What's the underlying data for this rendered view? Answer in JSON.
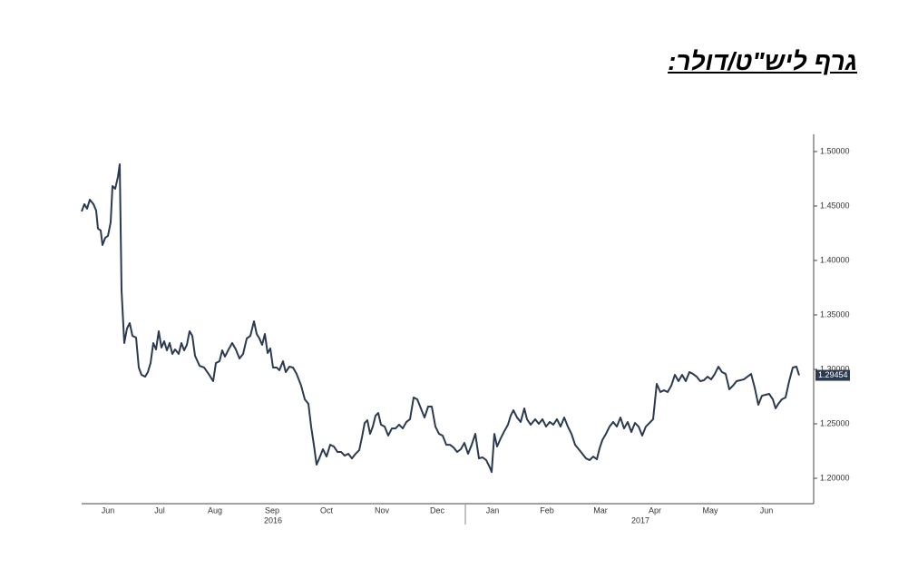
{
  "chart_data": {
    "type": "line",
    "title": "גרף ליש\"ט/דולר:",
    "x": [
      0,
      1.5,
      3,
      4.5,
      6.5,
      8,
      9,
      10.5,
      11.5,
      13,
      14.5,
      16,
      17,
      18.5,
      20,
      21,
      22,
      23.5,
      25,
      26.5,
      28,
      30,
      31.5,
      33,
      35,
      36.5,
      38,
      39.5,
      41,
      42.5,
      44,
      45.5,
      47,
      48.5,
      50,
      51.5,
      53.5,
      55,
      56.5,
      58,
      59.5,
      61,
      62.5,
      65,
      67.5,
      70,
      72.5,
      74,
      76,
      77.5,
      79,
      81,
      83,
      85,
      87,
      89,
      91,
      93,
      95,
      96.5,
      98,
      99.5,
      101,
      102.5,
      104,
      105.5,
      107.5,
      109,
      111,
      112.5,
      114.5,
      116.5,
      118.5,
      121,
      123,
      125,
      126.5,
      128,
      129.5,
      131,
      133,
      135,
      137,
      139,
      141,
      143,
      145,
      147,
      149,
      151,
      153,
      154.5,
      156,
      157.5,
      159,
      160.5,
      162,
      163.5,
      165,
      167,
      169,
      171,
      173,
      175,
      177,
      179,
      181,
      183,
      185,
      187,
      189,
      191,
      193,
      195,
      197,
      199,
      201,
      203,
      205,
      207,
      209,
      211,
      213,
      215,
      217,
      219,
      221,
      223,
      225,
      226,
      227.5,
      229,
      231,
      233,
      235,
      236.5,
      238,
      240,
      242,
      244,
      245.5,
      247.5,
      250,
      252,
      254,
      256,
      258,
      260,
      262,
      264,
      266,
      268,
      270,
      272,
      274,
      276,
      278,
      280,
      282,
      284,
      285.5,
      287,
      289,
      291,
      293,
      295,
      297,
      299,
      301,
      303,
      305,
      307,
      309,
      311,
      313,
      315,
      317,
      319,
      321,
      323,
      325,
      327,
      329,
      331,
      333,
      335,
      337,
      339,
      341,
      343,
      345,
      347,
      349,
      351,
      353,
      355,
      357,
      359,
      361,
      363,
      365,
      367,
      369,
      371,
      373,
      375,
      377,
      379,
      381,
      382.5,
      384,
      386,
      388,
      390,
      392,
      394,
      395.5
    ],
    "series": [
      {
        "color": "#2b3a4f",
        "values": [
          1.445,
          1.4517,
          1.4475,
          1.4558,
          1.4517,
          1.4458,
          1.4292,
          1.4275,
          1.4142,
          1.4208,
          1.4225,
          1.435,
          1.4683,
          1.4658,
          1.4767,
          1.4883,
          1.3725,
          1.3242,
          1.3375,
          1.3425,
          1.3308,
          1.3292,
          1.3017,
          1.295,
          1.2933,
          1.2975,
          1.3058,
          1.3242,
          1.3183,
          1.335,
          1.32,
          1.3258,
          1.3175,
          1.3242,
          1.3142,
          1.3183,
          1.3142,
          1.3242,
          1.3175,
          1.3225,
          1.335,
          1.3308,
          1.3125,
          1.3033,
          1.3017,
          1.2958,
          1.2892,
          1.3058,
          1.3075,
          1.3175,
          1.3117,
          1.3183,
          1.3242,
          1.3183,
          1.31,
          1.3142,
          1.3283,
          1.3308,
          1.3442,
          1.3325,
          1.3283,
          1.3225,
          1.3325,
          1.315,
          1.3192,
          1.3017,
          1.3017,
          1.2992,
          1.3075,
          1.2975,
          1.3025,
          1.3017,
          1.2958,
          1.285,
          1.2725,
          1.2683,
          1.2475,
          1.2308,
          1.2125,
          1.2183,
          1.2267,
          1.22,
          1.2308,
          1.2292,
          1.2242,
          1.2242,
          1.2208,
          1.2225,
          1.2183,
          1.2225,
          1.2258,
          1.2375,
          1.2508,
          1.2533,
          1.2408,
          1.2475,
          1.2575,
          1.26,
          1.2492,
          1.2475,
          1.2392,
          1.2458,
          1.2458,
          1.2492,
          1.2458,
          1.2517,
          1.2542,
          1.2742,
          1.2725,
          1.2642,
          1.2558,
          1.2658,
          1.2658,
          1.2475,
          1.2408,
          1.2392,
          1.2308,
          1.2308,
          1.2283,
          1.2242,
          1.2267,
          1.2325,
          1.2225,
          1.2308,
          1.2408,
          1.2183,
          1.2192,
          1.2167,
          1.21,
          1.2058,
          1.2408,
          1.2292,
          1.2367,
          1.2433,
          1.2492,
          1.2575,
          1.2625,
          1.2558,
          1.2517,
          1.2642,
          1.2542,
          1.2492,
          1.2542,
          1.25,
          1.2542,
          1.2475,
          1.2517,
          1.2492,
          1.2542,
          1.2475,
          1.2558,
          1.2475,
          1.2408,
          1.2308,
          1.2267,
          1.2225,
          1.2183,
          1.2167,
          1.22,
          1.2175,
          1.2275,
          1.235,
          1.2408,
          1.2475,
          1.2517,
          1.2475,
          1.2558,
          1.2458,
          1.2517,
          1.2425,
          1.2508,
          1.2475,
          1.2392,
          1.2475,
          1.2508,
          1.2542,
          1.2867,
          1.2792,
          1.2808,
          1.2792,
          1.285,
          1.295,
          1.2892,
          1.295,
          1.2892,
          1.2975,
          1.2958,
          1.2933,
          1.2892,
          1.29,
          1.2933,
          1.2908,
          1.2958,
          1.3025,
          1.2975,
          1.2958,
          1.2817,
          1.285,
          1.2892,
          1.29,
          1.2908,
          1.2933,
          1.2958,
          1.2833,
          1.2675,
          1.2758,
          1.2767,
          1.2775,
          1.2725,
          1.2642,
          1.2683,
          1.2725,
          1.2742,
          1.2892,
          1.3017,
          1.3025,
          1.29454
        ]
      }
    ],
    "xlim": [
      0,
      403.5
    ],
    "xticks": [
      {
        "value": 14.5,
        "label": "Jun"
      },
      {
        "value": 43,
        "label": "Jul"
      },
      {
        "value": 73.5,
        "label": "Aug"
      },
      {
        "value": 105,
        "label": "Sep"
      },
      {
        "value": 135,
        "label": "Oct"
      },
      {
        "value": 165.5,
        "label": "Nov"
      },
      {
        "value": 196,
        "label": "Dec"
      },
      {
        "value": 226.5,
        "label": "Jan"
      },
      {
        "value": 256.5,
        "label": "Feb"
      },
      {
        "value": 286,
        "label": "Mar"
      },
      {
        "value": 316,
        "label": "Apr"
      },
      {
        "value": 346.5,
        "label": "May"
      },
      {
        "value": 377.5,
        "label": "Jun"
      }
    ],
    "year_ticks": [
      {
        "value": 105.5,
        "label": "2016"
      },
      {
        "value": 308,
        "label": "2017"
      }
    ],
    "ylim": [
      1.1767,
      1.5158
    ],
    "yticks": [
      {
        "value": 1.2,
        "label": "1.20000"
      },
      {
        "value": 1.25,
        "label": "1.25000"
      },
      {
        "value": 1.3,
        "label": "1.30000"
      },
      {
        "value": 1.35,
        "label": "1.35000"
      },
      {
        "value": 1.4,
        "label": "1.40000"
      },
      {
        "value": 1.45,
        "label": "1.45000"
      },
      {
        "value": 1.5,
        "label": "1.50000"
      }
    ],
    "last_value_flag": true
  }
}
